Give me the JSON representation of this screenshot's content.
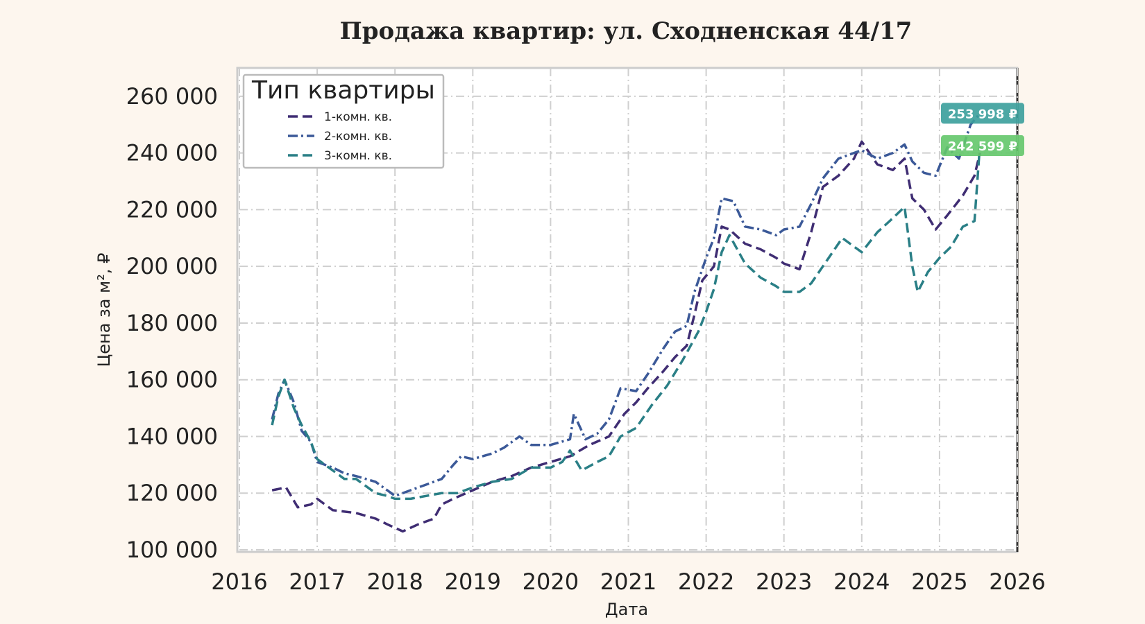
{
  "chart_data": {
    "type": "line",
    "title": "Продажа квартир: ул. Сходненская 44/17",
    "xlabel": "Дата",
    "ylabel": "Цена за м², ₽",
    "xlim": [
      2016,
      2026
    ],
    "ylim": [
      100000,
      270000
    ],
    "x_ticks": [
      "2016",
      "2017",
      "2018",
      "2019",
      "2020",
      "2021",
      "2022",
      "2023",
      "2024",
      "2025",
      "2026"
    ],
    "y_ticks": [
      "100 000",
      "120 000",
      "140 000",
      "160 000",
      "180 000",
      "200 000",
      "220 000",
      "240 000",
      "260 000"
    ],
    "grid": true,
    "legend": {
      "title": "Тип квартиры",
      "placement": "top-left"
    },
    "series": [
      {
        "name": "1-комн. кв.",
        "color": "#3f2d73",
        "dash": "dashed",
        "points": [
          [
            2016.42,
            121000
          ],
          [
            2016.6,
            122000
          ],
          [
            2016.75,
            115000
          ],
          [
            2016.92,
            116000
          ],
          [
            2017.0,
            118000
          ],
          [
            2017.2,
            114000
          ],
          [
            2017.5,
            113000
          ],
          [
            2017.75,
            111000
          ],
          [
            2017.9,
            109000
          ],
          [
            2018.1,
            106500
          ],
          [
            2018.3,
            109000
          ],
          [
            2018.5,
            111000
          ],
          [
            2018.6,
            116000
          ],
          [
            2018.75,
            118000
          ],
          [
            2019.0,
            121000
          ],
          [
            2019.25,
            124000
          ],
          [
            2019.5,
            126000
          ],
          [
            2019.75,
            129000
          ],
          [
            2020.0,
            131000
          ],
          [
            2020.25,
            133000
          ],
          [
            2020.5,
            137000
          ],
          [
            2020.75,
            140000
          ],
          [
            2020.95,
            148000
          ],
          [
            2021.1,
            152000
          ],
          [
            2021.25,
            157000
          ],
          [
            2021.45,
            163000
          ],
          [
            2021.6,
            168000
          ],
          [
            2021.75,
            172000
          ],
          [
            2021.85,
            183000
          ],
          [
            2021.95,
            195000
          ],
          [
            2022.1,
            200000
          ],
          [
            2022.2,
            214000
          ],
          [
            2022.3,
            213000
          ],
          [
            2022.5,
            208000
          ],
          [
            2022.7,
            206000
          ],
          [
            2022.9,
            203000
          ],
          [
            2023.0,
            201000
          ],
          [
            2023.2,
            199000
          ],
          [
            2023.35,
            212000
          ],
          [
            2023.5,
            228000
          ],
          [
            2023.7,
            232000
          ],
          [
            2023.9,
            238000
          ],
          [
            2024.0,
            244000
          ],
          [
            2024.2,
            236000
          ],
          [
            2024.4,
            234000
          ],
          [
            2024.55,
            238000
          ],
          [
            2024.65,
            224000
          ],
          [
            2024.8,
            220000
          ],
          [
            2024.95,
            213000
          ],
          [
            2025.1,
            218000
          ],
          [
            2025.3,
            225000
          ],
          [
            2025.45,
            232000
          ],
          [
            2025.52,
            240000
          ]
        ],
        "end_label": "",
        "end_value": 240000
      },
      {
        "name": "2-комн. кв.",
        "color": "#3b5998",
        "dash": "dashdot",
        "points": [
          [
            2016.42,
            146000
          ],
          [
            2016.5,
            155000
          ],
          [
            2016.58,
            160000
          ],
          [
            2016.7,
            152000
          ],
          [
            2016.8,
            142000
          ],
          [
            2016.92,
            138000
          ],
          [
            2017.0,
            131000
          ],
          [
            2017.2,
            129000
          ],
          [
            2017.35,
            127000
          ],
          [
            2017.5,
            126000
          ],
          [
            2017.75,
            124000
          ],
          [
            2017.9,
            121000
          ],
          [
            2018.0,
            119000
          ],
          [
            2018.2,
            121000
          ],
          [
            2018.4,
            123000
          ],
          [
            2018.6,
            125000
          ],
          [
            2018.75,
            130000
          ],
          [
            2018.85,
            133000
          ],
          [
            2019.0,
            132000
          ],
          [
            2019.25,
            134000
          ],
          [
            2019.4,
            136000
          ],
          [
            2019.6,
            140000
          ],
          [
            2019.75,
            137000
          ],
          [
            2020.0,
            137000
          ],
          [
            2020.25,
            139000
          ],
          [
            2020.3,
            148000
          ],
          [
            2020.45,
            139000
          ],
          [
            2020.6,
            141000
          ],
          [
            2020.75,
            146000
          ],
          [
            2020.9,
            157000
          ],
          [
            2021.1,
            156000
          ],
          [
            2021.25,
            162000
          ],
          [
            2021.45,
            171000
          ],
          [
            2021.6,
            177000
          ],
          [
            2021.75,
            179000
          ],
          [
            2021.85,
            191000
          ],
          [
            2022.0,
            203000
          ],
          [
            2022.1,
            210000
          ],
          [
            2022.2,
            224000
          ],
          [
            2022.35,
            223000
          ],
          [
            2022.5,
            214000
          ],
          [
            2022.7,
            213000
          ],
          [
            2022.9,
            211000
          ],
          [
            2023.0,
            213000
          ],
          [
            2023.2,
            214000
          ],
          [
            2023.35,
            222000
          ],
          [
            2023.5,
            231000
          ],
          [
            2023.7,
            238000
          ],
          [
            2023.9,
            240000
          ],
          [
            2024.0,
            241000
          ],
          [
            2024.2,
            238000
          ],
          [
            2024.4,
            240000
          ],
          [
            2024.55,
            243000
          ],
          [
            2024.65,
            237000
          ],
          [
            2024.8,
            233000
          ],
          [
            2024.95,
            232000
          ],
          [
            2025.1,
            242000
          ],
          [
            2025.25,
            238000
          ],
          [
            2025.4,
            250000
          ],
          [
            2025.52,
            254000
          ]
        ],
        "end_label": "",
        "end_value": 254000
      },
      {
        "name": "3-комн. кв.",
        "color": "#2a7f86",
        "dash": "dashed",
        "points": [
          [
            2016.42,
            144000
          ],
          [
            2016.5,
            154000
          ],
          [
            2016.58,
            160000
          ],
          [
            2016.7,
            150000
          ],
          [
            2016.8,
            144000
          ],
          [
            2016.92,
            138000
          ],
          [
            2017.0,
            132000
          ],
          [
            2017.2,
            128000
          ],
          [
            2017.35,
            125000
          ],
          [
            2017.5,
            125000
          ],
          [
            2017.75,
            120000
          ],
          [
            2017.9,
            119000
          ],
          [
            2018.0,
            118000
          ],
          [
            2018.2,
            118000
          ],
          [
            2018.4,
            119000
          ],
          [
            2018.6,
            120000
          ],
          [
            2018.8,
            120000
          ],
          [
            2019.0,
            122000
          ],
          [
            2019.25,
            124000
          ],
          [
            2019.5,
            125000
          ],
          [
            2019.75,
            129000
          ],
          [
            2020.0,
            129000
          ],
          [
            2020.15,
            131000
          ],
          [
            2020.25,
            135000
          ],
          [
            2020.4,
            128000
          ],
          [
            2020.6,
            131000
          ],
          [
            2020.75,
            133000
          ],
          [
            2020.9,
            140000
          ],
          [
            2021.1,
            143000
          ],
          [
            2021.3,
            151000
          ],
          [
            2021.5,
            158000
          ],
          [
            2021.7,
            167000
          ],
          [
            2021.9,
            177000
          ],
          [
            2022.0,
            184000
          ],
          [
            2022.1,
            192000
          ],
          [
            2022.2,
            205000
          ],
          [
            2022.3,
            211000
          ],
          [
            2022.5,
            201000
          ],
          [
            2022.7,
            196000
          ],
          [
            2022.9,
            193000
          ],
          [
            2023.0,
            191000
          ],
          [
            2023.2,
            191000
          ],
          [
            2023.35,
            194000
          ],
          [
            2023.55,
            202000
          ],
          [
            2023.75,
            210000
          ],
          [
            2023.9,
            207000
          ],
          [
            2024.0,
            205000
          ],
          [
            2024.2,
            212000
          ],
          [
            2024.4,
            217000
          ],
          [
            2024.55,
            221000
          ],
          [
            2024.65,
            200000
          ],
          [
            2024.72,
            191000
          ],
          [
            2024.85,
            198000
          ],
          [
            2025.0,
            203000
          ],
          [
            2025.15,
            207000
          ],
          [
            2025.3,
            214000
          ],
          [
            2025.45,
            216000
          ],
          [
            2025.52,
            243000
          ]
        ],
        "end_label": "",
        "end_value": 243000
      }
    ],
    "annotations": [
      {
        "text": "253 998 ₽",
        "value": 253998,
        "color": "#3a9e9b"
      },
      {
        "text": "242 599 ₽",
        "value": 242599,
        "color": "#63c76a"
      }
    ]
  }
}
